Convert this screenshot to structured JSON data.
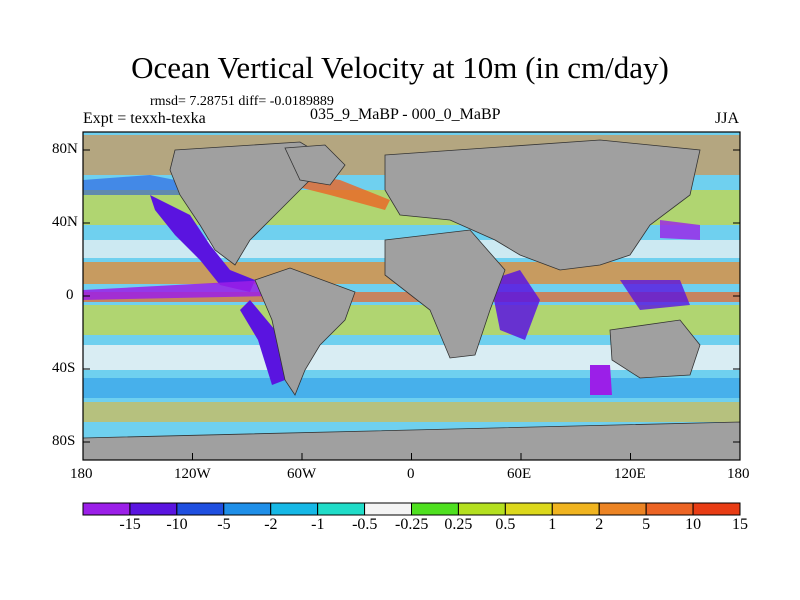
{
  "map": {
    "title": "Ocean Vertical Velocity at 10m (in cm/day)",
    "stats": "rmsd= 7.28751 diff= -0.0189889",
    "experiment": "Expt = texxh-texka",
    "period": "035_9_MaBP - 000_0_MaBP",
    "season": "JJA",
    "lat_labels": [
      "80N",
      "40N",
      "0",
      "40S",
      "80S"
    ],
    "lon_labels": [
      "180",
      "120W",
      "60W",
      "0",
      "60E",
      "120E",
      "180"
    ],
    "land_color": "#a0a0a0"
  },
  "colorbar": {
    "labels": [
      "-15",
      "-10",
      "-5",
      "-2",
      "-1",
      "-0.5",
      "-0.25",
      "0.25",
      "0.5",
      "1",
      "2",
      "5",
      "10",
      "15"
    ],
    "colors": [
      "#9b1fe8",
      "#5a14e0",
      "#1f4fe0",
      "#1f8fe8",
      "#16b8e6",
      "#20dcc8",
      "#f4f4f4",
      "#4fe020",
      "#b4e020",
      "#dcd81c",
      "#f0b420",
      "#ec8424",
      "#ec6424",
      "#e83c14"
    ]
  }
}
